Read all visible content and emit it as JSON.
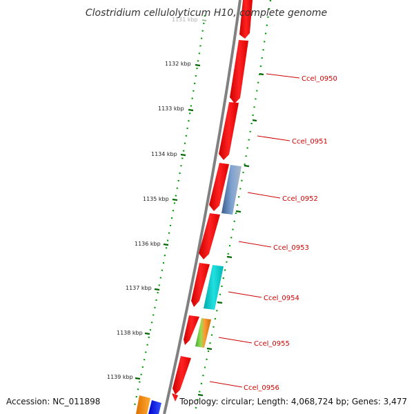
{
  "title": "Clostridium cellulolyticum H10, complete genome",
  "accession_text": "Accession: NC_011898",
  "topology_text": "Topology: circular; Length: 4,068,724 bp; Genes: 3,477",
  "colors": {
    "backbone": "#808080",
    "forward_gene": "#ff0000",
    "label": "#cc0000",
    "tick": "#006600",
    "dots": "#009900",
    "blue_gene": "#0000ff",
    "orange_gene": "#ff9900",
    "cyan_feature": "#00cccc",
    "steel_feature": "#5577aa",
    "green_feature": "#66cc33"
  },
  "ticks": [
    {
      "label": "1131 kbp",
      "faded": true
    },
    {
      "label": "1132 kbp"
    },
    {
      "label": "1133 kbp"
    },
    {
      "label": "1134 kbp"
    },
    {
      "label": "1135 kbp"
    },
    {
      "label": "1136 kbp"
    },
    {
      "label": "1137 kbp"
    },
    {
      "label": "1138 kbp"
    },
    {
      "label": "1139 kbp"
    }
  ],
  "genes": [
    {
      "label": "Ccel_0950"
    },
    {
      "label": "Ccel_0951"
    },
    {
      "label": "Ccel_0952"
    },
    {
      "label": "Ccel_0953"
    },
    {
      "label": "Ccel_0954"
    },
    {
      "label": "Ccel_0955"
    },
    {
      "label": "Ccel_0956"
    }
  ]
}
